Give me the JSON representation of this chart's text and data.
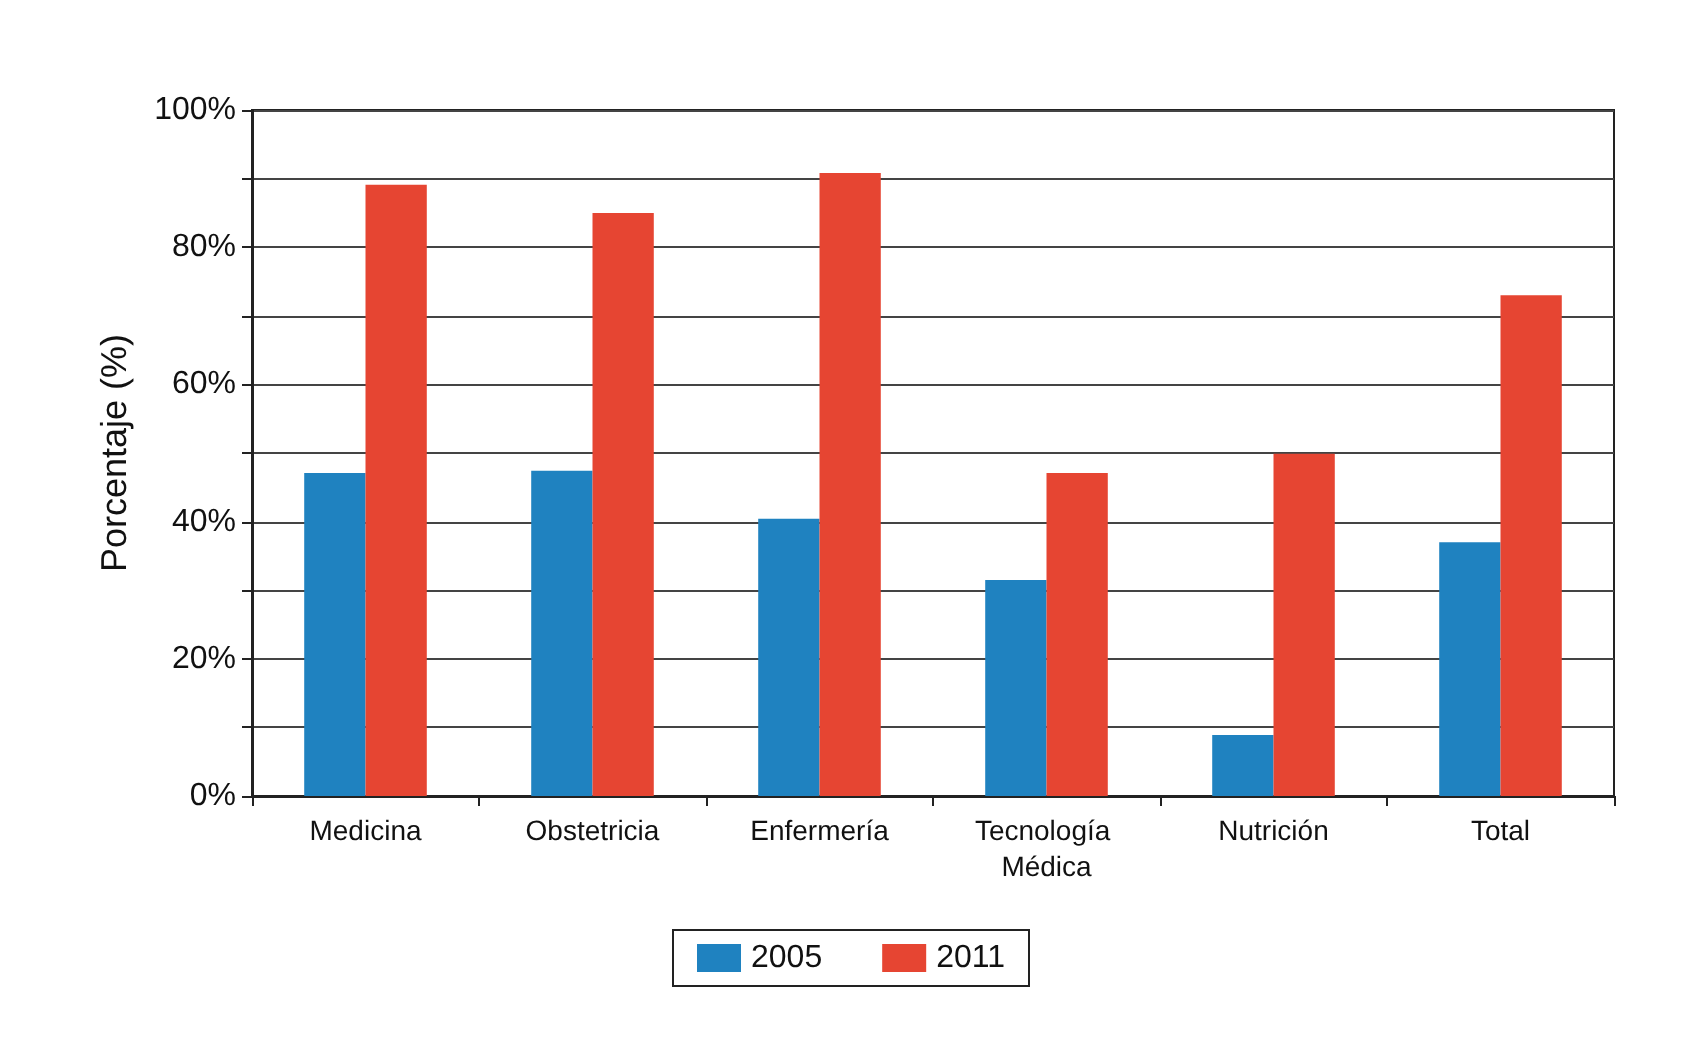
{
  "chart_data": {
    "type": "bar",
    "ylabel": "Porcentaje (%)",
    "categories": [
      "Medicina",
      "Obstetricia",
      "Enfermería",
      "Tecnología Médica",
      "Nutrición",
      "Total"
    ],
    "series": [
      {
        "name": "2005",
        "color": "#1f82c0",
        "values": [
          47.1,
          47.4,
          40.4,
          31.5,
          8.9,
          37.0
        ]
      },
      {
        "name": "2011",
        "color": "#e64532",
        "values": [
          89.1,
          85.0,
          90.8,
          47.1,
          49.9,
          73.0
        ]
      }
    ],
    "ylim": [
      0,
      100
    ],
    "yticks": [
      {
        "value": 0,
        "label": "0%"
      },
      {
        "value": 10,
        "label": null
      },
      {
        "value": 20,
        "label": "20%"
      },
      {
        "value": 30,
        "label": null
      },
      {
        "value": 40,
        "label": "40%"
      },
      {
        "value": 50,
        "label": null
      },
      {
        "value": 60,
        "label": "60%"
      },
      {
        "value": 70,
        "label": null
      },
      {
        "value": 80,
        "label": "80%"
      },
      {
        "value": 90,
        "label": null
      },
      {
        "value": 100,
        "label": "100%"
      }
    ],
    "grid": "y",
    "legend": "bottom"
  }
}
